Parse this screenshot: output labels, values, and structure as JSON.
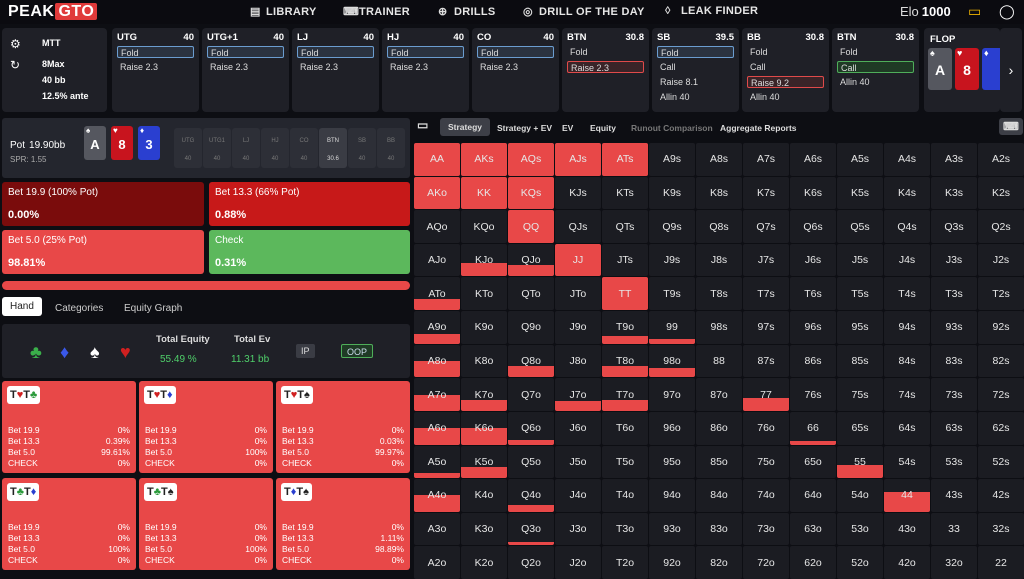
{
  "app": {
    "logo_a": "PEAK",
    "logo_b": "GTO",
    "elo_label": "Elo",
    "elo_value": "1000"
  },
  "nav": [
    "LIBRARY",
    "TRAINER",
    "DRILLS",
    "DRILL OF THE DAY",
    "LEAK FINDER"
  ],
  "game": {
    "type": "MTT",
    "max": "8Max",
    "depth": "40 bb",
    "ante": "12.5% ante"
  },
  "seats": [
    {
      "name": "UTG",
      "stack": "40",
      "rows": [
        "Fold",
        "Raise 2.3"
      ],
      "sel": 0,
      "selcolor": "blue"
    },
    {
      "name": "UTG+1",
      "stack": "40",
      "rows": [
        "Fold",
        "Raise 2.3"
      ],
      "sel": 0,
      "selcolor": "blue"
    },
    {
      "name": "LJ",
      "stack": "40",
      "rows": [
        "Fold",
        "Raise 2.3"
      ],
      "sel": 0,
      "selcolor": "blue"
    },
    {
      "name": "HJ",
      "stack": "40",
      "rows": [
        "Fold",
        "Raise 2.3"
      ],
      "sel": 0,
      "selcolor": "blue"
    },
    {
      "name": "CO",
      "stack": "40",
      "rows": [
        "Fold",
        "Raise 2.3"
      ],
      "sel": 0,
      "selcolor": "blue"
    },
    {
      "name": "BTN",
      "stack": "30.8",
      "rows": [
        "Fold",
        "Raise 2.3"
      ],
      "sel": 1,
      "selcolor": "red"
    },
    {
      "name": "SB",
      "stack": "39.5",
      "rows": [
        "Fold",
        "Call",
        "Raise 8.1",
        "Allin 40"
      ],
      "sel": 0,
      "selcolor": "blue"
    },
    {
      "name": "BB",
      "stack": "30.8",
      "rows": [
        "Fold",
        "Call",
        "Raise 9.2",
        "Allin 40"
      ],
      "sel": 2,
      "selcolor": "red"
    },
    {
      "name": "BTN",
      "stack": "30.8",
      "rows": [
        "Fold",
        "Call",
        "Allin 40"
      ],
      "sel": 1,
      "selcolor": "green"
    }
  ],
  "flop": {
    "label": "FLOP",
    "cards": [
      {
        "r": "A",
        "s": "♠",
        "c": "#55575f"
      },
      {
        "r": "8",
        "s": "♥",
        "c": "#c8141e"
      },
      {
        "r": "",
        "s": "♦",
        "c": "#2a3fd0"
      }
    ]
  },
  "board": {
    "pot_label": "Pot",
    "pot": "19.90bb",
    "spr": "SPR: 1.55",
    "cards": [
      {
        "r": "A",
        "s": "♠",
        "c": "#55575f"
      },
      {
        "r": "8",
        "s": "♥",
        "c": "#c8141e"
      },
      {
        "r": "3",
        "s": "♦",
        "c": "#2a3fd0"
      }
    ],
    "positions": [
      {
        "n": "UTG",
        "v": "40"
      },
      {
        "n": "UTG1",
        "v": "40"
      },
      {
        "n": "LJ",
        "v": "40"
      },
      {
        "n": "HJ",
        "v": "40"
      },
      {
        "n": "CO",
        "v": "40"
      },
      {
        "n": "BTN",
        "v": "30.6"
      },
      {
        "n": "SB",
        "v": "40"
      },
      {
        "n": "BB",
        "v": "40"
      }
    ]
  },
  "actions": [
    {
      "label": "Bet 19.9 (100% Pot)",
      "pct": "0.00%",
      "color": "#7a0c0c"
    },
    {
      "label": "Bet 13.3 (66% Pot)",
      "pct": "0.88%",
      "color": "#c71919"
    },
    {
      "label": "Bet 5.0 (25% Pot)",
      "pct": "98.81%",
      "color": "#e84848"
    },
    {
      "label": "Check",
      "pct": "0.31%",
      "color": "#5cb85c"
    }
  ],
  "subtabs": [
    "Hand",
    "Categories",
    "Equity Graph"
  ],
  "equity": {
    "suits": [
      {
        "s": "♣",
        "c": "#3ab04a"
      },
      {
        "s": "♦",
        "c": "#3a58e8"
      },
      {
        "s": "♠",
        "c": "#ffffff"
      },
      {
        "s": "♥",
        "c": "#d02020"
      }
    ],
    "te_label": "Total Equity",
    "te": "55.49 %",
    "ev_label": "Total Ev",
    "ev": "11.31 bb",
    "ip": "IP",
    "oop": "OOP"
  },
  "combos": [
    {
      "cards": [
        {
          "r": "T",
          "s": "♥",
          "c": "#d02020"
        },
        {
          "r": "T",
          "s": "♣",
          "c": "#2a9a3a"
        }
      ],
      "lines": [
        [
          "Bet 19.9",
          "0%"
        ],
        [
          "Bet 13.3",
          "0.39%"
        ],
        [
          "Bet 5.0",
          "99.61%"
        ],
        [
          "CHECK",
          "0%"
        ]
      ]
    },
    {
      "cards": [
        {
          "r": "T",
          "s": "♥",
          "c": "#d02020"
        },
        {
          "r": "T",
          "s": "♦",
          "c": "#2a3fd0"
        }
      ],
      "lines": [
        [
          "Bet 19.9",
          "0%"
        ],
        [
          "Bet 13.3",
          "0%"
        ],
        [
          "Bet 5.0",
          "100%"
        ],
        [
          "CHECK",
          "0%"
        ]
      ]
    },
    {
      "cards": [
        {
          "r": "T",
          "s": "♥",
          "c": "#d02020"
        },
        {
          "r": "T",
          "s": "♠",
          "c": "#222222"
        }
      ],
      "lines": [
        [
          "Bet 19.9",
          "0%"
        ],
        [
          "Bet 13.3",
          "0.03%"
        ],
        [
          "Bet 5.0",
          "99.97%"
        ],
        [
          "CHECK",
          "0%"
        ]
      ]
    },
    {
      "cards": [
        {
          "r": "T",
          "s": "♣",
          "c": "#2a9a3a"
        },
        {
          "r": "T",
          "s": "♦",
          "c": "#2a3fd0"
        }
      ],
      "lines": [
        [
          "Bet 19.9",
          "0%"
        ],
        [
          "Bet 13.3",
          "0%"
        ],
        [
          "Bet 5.0",
          "100%"
        ],
        [
          "CHECK",
          "0%"
        ]
      ]
    },
    {
      "cards": [
        {
          "r": "T",
          "s": "♣",
          "c": "#2a9a3a"
        },
        {
          "r": "T",
          "s": "♠",
          "c": "#222222"
        }
      ],
      "lines": [
        [
          "Bet 19.9",
          "0%"
        ],
        [
          "Bet 13.3",
          "0%"
        ],
        [
          "Bet 5.0",
          "100%"
        ],
        [
          "CHECK",
          "0%"
        ]
      ]
    },
    {
      "cards": [
        {
          "r": "T",
          "s": "♦",
          "c": "#2a3fd0"
        },
        {
          "r": "T",
          "s": "♠",
          "c": "#222222"
        }
      ],
      "lines": [
        [
          "Bet 19.9",
          "0%"
        ],
        [
          "Bet 13.3",
          "1.11%"
        ],
        [
          "Bet 5.0",
          "98.89%"
        ],
        [
          "CHECK",
          "0%"
        ]
      ]
    }
  ],
  "view_tabs": [
    "Strategy",
    "Strategy + EV",
    "EV",
    "Equity",
    "Runout Comparison",
    "Aggregate Reports"
  ],
  "ranks": [
    "A",
    "K",
    "Q",
    "J",
    "T",
    "9",
    "8",
    "7",
    "6",
    "5",
    "4",
    "3",
    "2"
  ],
  "fills": {
    "AA": 1,
    "AKs": 1,
    "AQs": 1,
    "AJs": 1,
    "ATs": 1,
    "AKo": 1,
    "KK": 1,
    "KQs": 1,
    "QQ": 1,
    "JJ": 1,
    "TT": 1,
    "KJo": 0.4,
    "QJo": 0.35,
    "ATo": 0.35,
    "A9o": 0.3,
    "T9o": 0.25,
    "99": 0.15,
    "A8o": 0.5,
    "Q8o": 0.35,
    "T8o": 0.35,
    "98o": 0.3,
    "A7o": 0.5,
    "K7o": 0.35,
    "J7o": 0.3,
    "T7o": 0.35,
    "77": 0.4,
    "A6o": 0.5,
    "K6o": 0.5,
    "Q6o": 0.15,
    "66": 0.1,
    "A5o": 0.15,
    "K5o": 0.35,
    "55": 0.4,
    "A4o": 0.5,
    "Q4o": 0.2,
    "44": 0.6,
    "Q3o": 0.1
  }
}
